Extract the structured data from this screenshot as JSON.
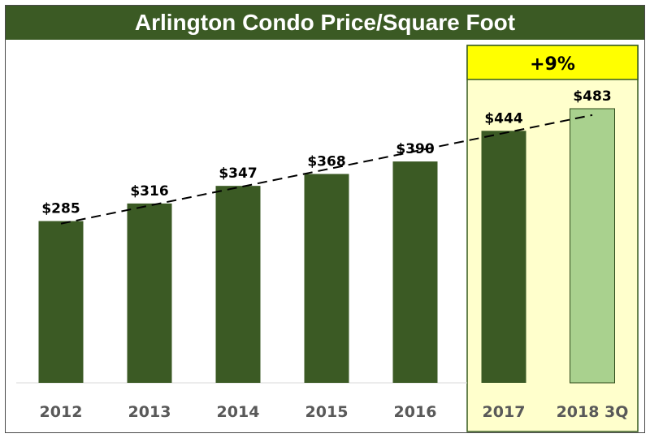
{
  "header": {
    "title": "Arlington Condo Price/Square Foot"
  },
  "highlight": {
    "label": "+9%",
    "fill_color": "#ffffcc",
    "badge_color": "#ffff00",
    "border_color": "#375a1e"
  },
  "colors": {
    "bar": "#3b5a24",
    "bar_highlight": "#a9d18e",
    "title_bg": "#3b5a24"
  },
  "chart_data": {
    "type": "bar",
    "title": "Arlington Condo Price/Square Foot",
    "xlabel": "",
    "ylabel": "",
    "categories": [
      "2012",
      "2013",
      "2014",
      "2015",
      "2016",
      "2017",
      "2018 3Q"
    ],
    "values": [
      285,
      316,
      347,
      368,
      390,
      444,
      483
    ],
    "value_labels": [
      "$285",
      "$316",
      "$347",
      "$368",
      "$390",
      "$444",
      "$483"
    ],
    "ylim": [
      0,
      483
    ],
    "grid": false,
    "trendline": true,
    "highlighted_categories": [
      "2017",
      "2018 3Q"
    ]
  }
}
